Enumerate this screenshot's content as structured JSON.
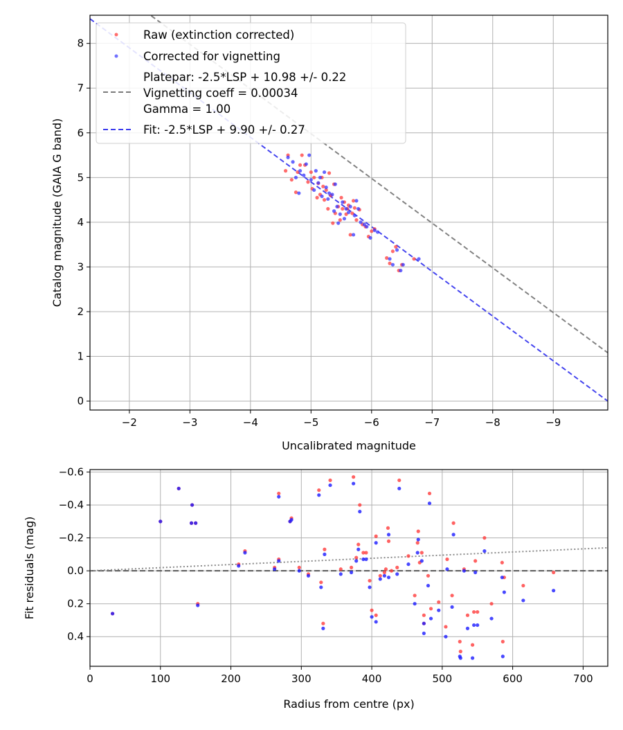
{
  "chart_data": [
    {
      "type": "scatter",
      "xlabel": "Uncalibrated magnitude",
      "ylabel": "Catalog magnitude (GAIA G band)",
      "xlim": [
        -1.35,
        -9.9
      ],
      "ylim": [
        8.63,
        -0.2
      ],
      "x_ticks": [
        -2,
        -3,
        -4,
        -5,
        -6,
        -7,
        -8,
        -9
      ],
      "x_tick_labels": [
        "−2",
        "−3",
        "−4",
        "−5",
        "−6",
        "−7",
        "−8",
        "−9"
      ],
      "y_ticks": [
        0,
        1,
        2,
        3,
        4,
        5,
        6,
        7,
        8
      ],
      "y_tick_labels": [
        "0",
        "1",
        "2",
        "3",
        "4",
        "5",
        "6",
        "7",
        "8"
      ],
      "grid": true,
      "legend_position": "top-left",
      "legend": {
        "raw": "Raw (extinction corrected)",
        "corrected": "Corrected for vignetting",
        "platepar_lines": [
          "Platepar: -2.5*LSP + 10.98 +/- 0.22",
          "Vignetting coeff = 0.00034",
          "Gamma = 1.00"
        ],
        "fit": "Fit: -2.5*LSP + 9.90 +/- 0.27"
      },
      "colors": {
        "raw": "#ff3b3b",
        "corrected": "#3434ff",
        "platepar_line": "#7a7a7a",
        "fit_line": "#3a3aee"
      },
      "lines": [
        {
          "name": "Platepar: -2.5*LSP + 10.98 +/- 0.22",
          "slope": 1,
          "intercept": 10.98
        },
        {
          "name": "Fit: -2.5*LSP + 9.90 +/- 0.27",
          "slope": 1,
          "intercept": 9.9
        }
      ],
      "series": [
        {
          "name": "Raw (extinction corrected)",
          "points": [
            [
              -4.58,
              5.15
            ],
            [
              -4.62,
              5.5
            ],
            [
              -4.68,
              4.95
            ],
            [
              -4.75,
              4.67
            ],
            [
              -4.78,
              5.12
            ],
            [
              -4.82,
              5.28
            ],
            [
              -4.85,
              5.5
            ],
            [
              -4.9,
              5.28
            ],
            [
              -4.95,
              4.9
            ],
            [
              -5.0,
              5.12
            ],
            [
              -5.02,
              4.75
            ],
            [
              -5.05,
              5.0
            ],
            [
              -5.1,
              4.55
            ],
            [
              -5.12,
              4.87
            ],
            [
              -5.15,
              4.62
            ],
            [
              -5.18,
              5.0
            ],
            [
              -5.2,
              4.8
            ],
            [
              -5.22,
              4.5
            ],
            [
              -5.25,
              4.72
            ],
            [
              -5.28,
              4.3
            ],
            [
              -5.3,
              5.1
            ],
            [
              -5.33,
              4.6
            ],
            [
              -5.36,
              3.98
            ],
            [
              -5.38,
              4.85
            ],
            [
              -5.4,
              4.2
            ],
            [
              -5.45,
              4.35
            ],
            [
              -5.48,
              4.05
            ],
            [
              -5.5,
              4.55
            ],
            [
              -5.52,
              4.3
            ],
            [
              -5.55,
              4.45
            ],
            [
              -5.58,
              4.18
            ],
            [
              -5.6,
              4.3
            ],
            [
              -5.62,
              4.38
            ],
            [
              -5.65,
              3.72
            ],
            [
              -5.68,
              4.2
            ],
            [
              -5.7,
              4.48
            ],
            [
              -5.72,
              4.32
            ],
            [
              -5.75,
              4.05
            ],
            [
              -5.8,
              4.28
            ],
            [
              -5.85,
              3.95
            ],
            [
              -5.9,
              3.9
            ],
            [
              -5.95,
              3.68
            ],
            [
              -6.0,
              3.8
            ],
            [
              -6.05,
              3.85
            ],
            [
              -6.25,
              3.2
            ],
            [
              -6.3,
              3.08
            ],
            [
              -6.35,
              3.35
            ],
            [
              -6.4,
              3.45
            ],
            [
              -6.45,
              2.92
            ],
            [
              -6.5,
              3.05
            ],
            [
              -6.7,
              3.18
            ]
          ]
        },
        {
          "name": "Corrected for vignetting",
          "points": [
            [
              -4.62,
              5.45
            ],
            [
              -4.7,
              5.35
            ],
            [
              -4.75,
              5.0
            ],
            [
              -4.8,
              4.65
            ],
            [
              -4.82,
              5.15
            ],
            [
              -4.88,
              5.05
            ],
            [
              -4.92,
              5.3
            ],
            [
              -4.97,
              5.5
            ],
            [
              -5.0,
              4.95
            ],
            [
              -5.05,
              4.72
            ],
            [
              -5.08,
              5.15
            ],
            [
              -5.12,
              4.88
            ],
            [
              -5.15,
              5.0
            ],
            [
              -5.18,
              4.58
            ],
            [
              -5.22,
              5.12
            ],
            [
              -5.25,
              4.78
            ],
            [
              -5.28,
              4.52
            ],
            [
              -5.3,
              4.65
            ],
            [
              -5.35,
              4.62
            ],
            [
              -5.38,
              4.25
            ],
            [
              -5.4,
              4.85
            ],
            [
              -5.43,
              4.35
            ],
            [
              -5.45,
              3.98
            ],
            [
              -5.48,
              4.18
            ],
            [
              -5.52,
              4.45
            ],
            [
              -5.55,
              4.08
            ],
            [
              -5.58,
              4.3
            ],
            [
              -5.62,
              4.22
            ],
            [
              -5.65,
              4.35
            ],
            [
              -5.7,
              3.72
            ],
            [
              -5.72,
              4.15
            ],
            [
              -5.75,
              4.48
            ],
            [
              -5.78,
              4.3
            ],
            [
              -5.82,
              4.0
            ],
            [
              -5.88,
              3.95
            ],
            [
              -5.92,
              3.9
            ],
            [
              -5.98,
              3.65
            ],
            [
              -6.05,
              3.82
            ],
            [
              -6.1,
              3.78
            ],
            [
              -6.3,
              3.18
            ],
            [
              -6.35,
              3.05
            ],
            [
              -6.42,
              3.38
            ],
            [
              -6.48,
              2.92
            ],
            [
              -6.52,
              3.05
            ],
            [
              -6.78,
              3.18
            ]
          ]
        }
      ]
    },
    {
      "type": "scatter",
      "xlabel": "Radius from centre (px)",
      "ylabel": "Fit residuals (mag)",
      "xlim": [
        0,
        735
      ],
      "ylim": [
        -0.615,
        0.58
      ],
      "x_ticks": [
        0,
        100,
        200,
        300,
        400,
        500,
        600,
        700
      ],
      "x_tick_labels": [
        "0",
        "100",
        "200",
        "300",
        "400",
        "500",
        "600",
        "700"
      ],
      "y_ticks": [
        0.4,
        0.2,
        0.0,
        -0.2,
        -0.4,
        -0.6
      ],
      "y_tick_labels": [
        "0.4",
        "0.2",
        "0.0",
        "−0.2",
        "−0.4",
        "−0.6"
      ],
      "grid": true,
      "colors": {
        "raw": "#ff3b3b",
        "corrected": "#1a1aff",
        "zero_line": "#555555",
        "trend_line": "#888888"
      },
      "lines": [
        {
          "name": "zero",
          "points": [
            [
              0,
              0
            ],
            [
              735,
              0
            ]
          ]
        },
        {
          "name": "vignetting trend",
          "points": [
            [
              0,
              0
            ],
            [
              735,
              -0.14
            ]
          ]
        }
      ],
      "series": [
        {
          "name": "Raw",
          "points": [
            [
              32,
              0.26
            ],
            [
              100,
              -0.3
            ],
            [
              126,
              -0.5
            ],
            [
              144,
              -0.29
            ],
            [
              145,
              -0.4
            ],
            [
              150,
              -0.29
            ],
            [
              153,
              0.2
            ],
            [
              211,
              -0.04
            ],
            [
              220,
              -0.12
            ],
            [
              262,
              -0.02
            ],
            [
              268,
              -0.07
            ],
            [
              268,
              -0.47
            ],
            [
              284,
              -0.3
            ],
            [
              286,
              -0.32
            ],
            [
              297,
              -0.02
            ],
            [
              310,
              0.02
            ],
            [
              325,
              -0.49
            ],
            [
              328,
              0.07
            ],
            [
              331,
              0.32
            ],
            [
              333,
              -0.13
            ],
            [
              341,
              -0.55
            ],
            [
              356,
              -0.01
            ],
            [
              371,
              -0.02
            ],
            [
              374,
              -0.57
            ],
            [
              378,
              -0.08
            ],
            [
              381,
              -0.16
            ],
            [
              383,
              -0.4
            ],
            [
              388,
              -0.11
            ],
            [
              392,
              -0.11
            ],
            [
              397,
              0.06
            ],
            [
              400,
              0.24
            ],
            [
              406,
              0.27
            ],
            [
              406,
              -0.21
            ],
            [
              412,
              0.03
            ],
            [
              418,
              0.01
            ],
            [
              420,
              -0.01
            ],
            [
              423,
              -0.26
            ],
            [
              424,
              -0.18
            ],
            [
              428,
              0.0
            ],
            [
              436,
              -0.02
            ],
            [
              439,
              -0.55
            ],
            [
              452,
              -0.09
            ],
            [
              461,
              0.15
            ],
            [
              465,
              -0.17
            ],
            [
              466,
              -0.24
            ],
            [
              468,
              -0.05
            ],
            [
              471,
              -0.11
            ],
            [
              474,
              0.27
            ],
            [
              474,
              0.32
            ],
            [
              480,
              0.03
            ],
            [
              482,
              -0.47
            ],
            [
              484,
              0.23
            ],
            [
              495,
              0.19
            ],
            [
              505,
              0.34
            ],
            [
              507,
              -0.07
            ],
            [
              514,
              0.15
            ],
            [
              516,
              -0.29
            ],
            [
              525,
              0.43
            ],
            [
              526,
              0.49
            ],
            [
              531,
              -0.01
            ],
            [
              536,
              0.27
            ],
            [
              543,
              0.45
            ],
            [
              545,
              0.25
            ],
            [
              547,
              -0.06
            ],
            [
              550,
              0.25
            ],
            [
              560,
              -0.2
            ],
            [
              570,
              0.2
            ],
            [
              585,
              -0.05
            ],
            [
              586,
              0.43
            ],
            [
              588,
              0.04
            ],
            [
              615,
              0.09
            ],
            [
              658,
              0.01
            ]
          ]
        },
        {
          "name": "Corrected",
          "points": [
            [
              32,
              0.26
            ],
            [
              100,
              -0.3
            ],
            [
              126,
              -0.5
            ],
            [
              144,
              -0.29
            ],
            [
              145,
              -0.4
            ],
            [
              150,
              -0.29
            ],
            [
              153,
              0.21
            ],
            [
              211,
              -0.03
            ],
            [
              220,
              -0.11
            ],
            [
              262,
              -0.01
            ],
            [
              268,
              -0.06
            ],
            [
              268,
              -0.45
            ],
            [
              284,
              -0.3
            ],
            [
              286,
              -0.31
            ],
            [
              297,
              0.0
            ],
            [
              310,
              0.03
            ],
            [
              325,
              -0.46
            ],
            [
              328,
              0.1
            ],
            [
              331,
              0.35
            ],
            [
              333,
              -0.1
            ],
            [
              341,
              -0.52
            ],
            [
              356,
              0.02
            ],
            [
              371,
              0.01
            ],
            [
              374,
              -0.53
            ],
            [
              378,
              -0.06
            ],
            [
              381,
              -0.13
            ],
            [
              383,
              -0.36
            ],
            [
              388,
              -0.07
            ],
            [
              392,
              -0.07
            ],
            [
              397,
              0.1
            ],
            [
              400,
              0.28
            ],
            [
              406,
              0.31
            ],
            [
              406,
              -0.17
            ],
            [
              412,
              0.05
            ],
            [
              418,
              0.03
            ],
            [
              424,
              0.04
            ],
            [
              424,
              -0.22
            ],
            [
              436,
              0.02
            ],
            [
              439,
              -0.5
            ],
            [
              452,
              -0.04
            ],
            [
              461,
              0.2
            ],
            [
              465,
              -0.11
            ],
            [
              466,
              -0.19
            ],
            [
              471,
              -0.06
            ],
            [
              474,
              0.38
            ],
            [
              474,
              0.32
            ],
            [
              480,
              0.09
            ],
            [
              482,
              -0.41
            ],
            [
              484,
              0.29
            ],
            [
              495,
              0.24
            ],
            [
              505,
              0.4
            ],
            [
              507,
              -0.01
            ],
            [
              514,
              0.22
            ],
            [
              516,
              -0.22
            ],
            [
              525,
              0.52
            ],
            [
              526,
              0.53
            ],
            [
              531,
              0.0
            ],
            [
              536,
              0.35
            ],
            [
              543,
              0.53
            ],
            [
              545,
              0.33
            ],
            [
              547,
              0.01
            ],
            [
              550,
              0.33
            ],
            [
              560,
              -0.12
            ],
            [
              570,
              0.29
            ],
            [
              585,
              0.04
            ],
            [
              586,
              0.52
            ],
            [
              588,
              0.13
            ],
            [
              615,
              0.18
            ],
            [
              658,
              0.12
            ]
          ]
        }
      ]
    }
  ]
}
